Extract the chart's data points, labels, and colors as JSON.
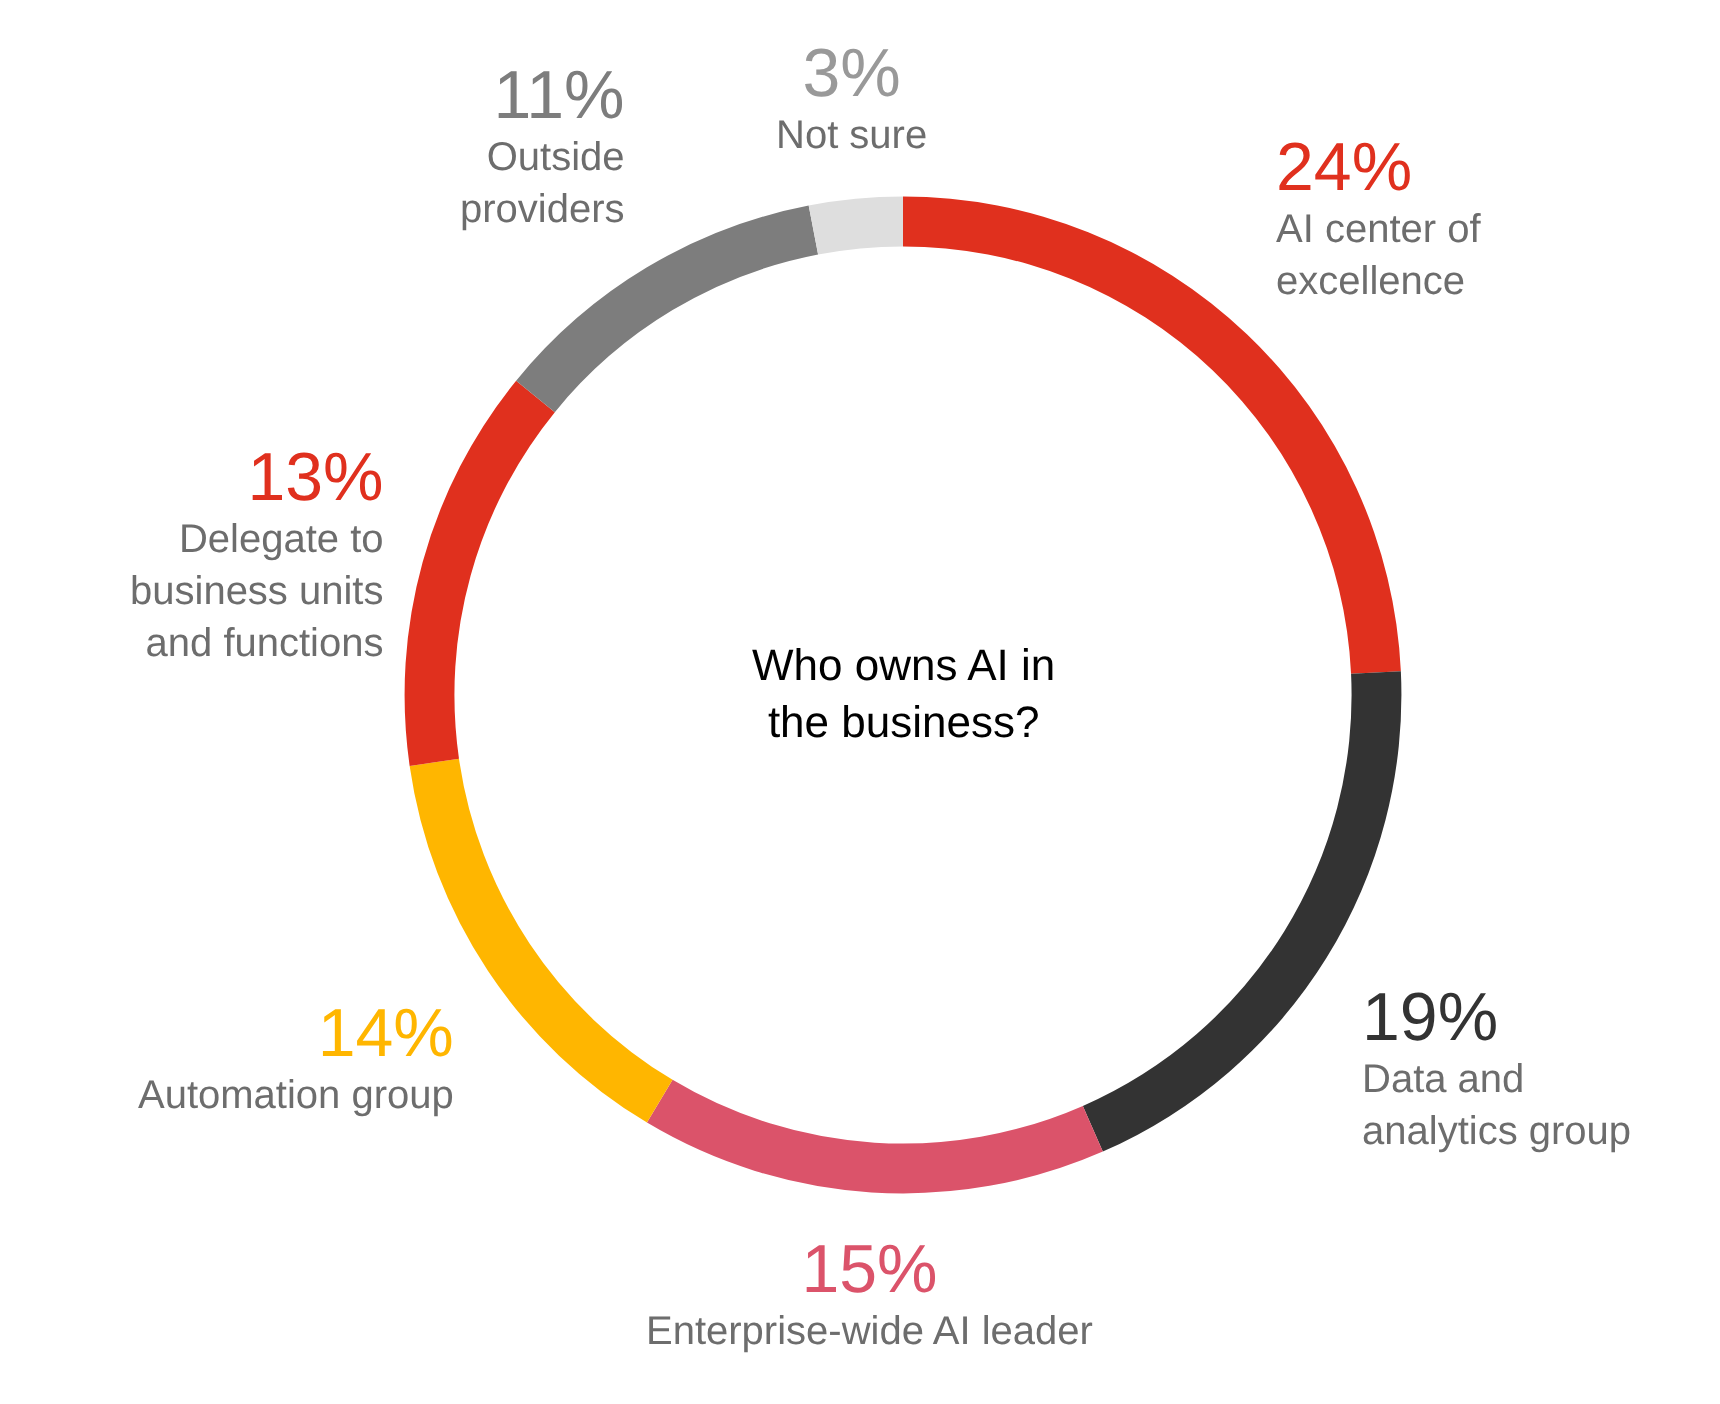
{
  "chart_data": {
    "type": "donut",
    "title": "Who owns AI in the business?",
    "categories": [
      "AI center of excellence",
      "Data and analytics group",
      "Enterprise-wide AI leader",
      "Automation group",
      "Delegate to business units and functions",
      "Outside providers",
      "Not sure"
    ],
    "values": [
      24,
      19,
      15,
      14,
      13,
      11,
      3
    ],
    "value_labels": [
      "24%",
      "19%",
      "15%",
      "14%",
      "13%",
      "11%",
      "3%"
    ],
    "colors": [
      "#e0301e",
      "#333333",
      "#db536a",
      "#ffb600",
      "#e0301e",
      "#7d7d7d",
      "#dedede"
    ],
    "legend": false
  }
}
